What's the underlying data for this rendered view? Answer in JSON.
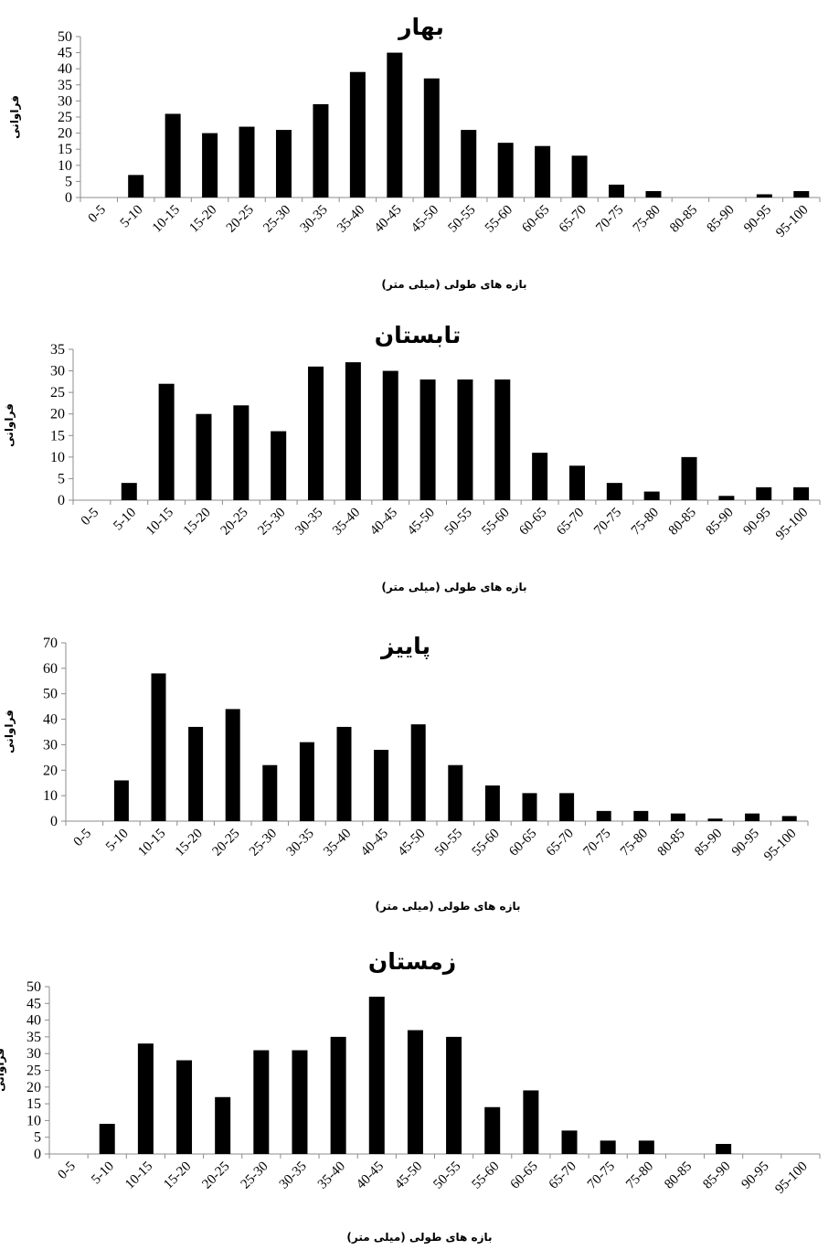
{
  "chart_data": [
    {
      "type": "bar",
      "title": "بهار",
      "xlabel": "بازه های طولی (میلی متر)",
      "ylabel": "فراوانی",
      "categories": [
        "0-5",
        "5-10",
        "10-15",
        "15-20",
        "20-25",
        "25-30",
        "30-35",
        "35-40",
        "40-45",
        "45-50",
        "50-55",
        "55-60",
        "60-65",
        "65-70",
        "70-75",
        "75-80",
        "80-85",
        "85-90",
        "90-95",
        "95-100"
      ],
      "values": [
        0,
        7,
        26,
        20,
        22,
        21,
        29,
        39,
        45,
        37,
        21,
        17,
        16,
        13,
        4,
        2,
        0,
        0,
        1,
        2
      ],
      "ylim": [
        0,
        50
      ],
      "yticks": [
        0,
        5,
        10,
        15,
        20,
        25,
        30,
        35,
        40,
        45,
        50
      ],
      "grid": false,
      "bar_color": "#000000"
    },
    {
      "type": "bar",
      "title": "تابستان",
      "xlabel": "بازه های طولی (میلی متر)",
      "ylabel": "فراوانی",
      "categories": [
        "0-5",
        "5-10",
        "10-15",
        "15-20",
        "20-25",
        "25-30",
        "30-35",
        "35-40",
        "40-45",
        "45-50",
        "50-55",
        "55-60",
        "60-65",
        "65-70",
        "70-75",
        "75-80",
        "80-85",
        "85-90",
        "90-95",
        "95-100"
      ],
      "values": [
        0,
        4,
        27,
        20,
        22,
        16,
        31,
        32,
        30,
        28,
        28,
        28,
        11,
        8,
        4,
        2,
        10,
        1,
        3,
        3
      ],
      "ylim": [
        0,
        35
      ],
      "yticks": [
        0,
        5,
        10,
        15,
        20,
        25,
        30,
        35
      ],
      "grid": false,
      "bar_color": "#000000"
    },
    {
      "type": "bar",
      "title": "پاییز",
      "xlabel": "بازه های طولی (میلی متر)",
      "ylabel": "فراوانی",
      "categories": [
        "0-5",
        "5-10",
        "10-15",
        "15-20",
        "20-25",
        "25-30",
        "30-35",
        "35-40",
        "40-45",
        "45-50",
        "50-55",
        "55-60",
        "60-65",
        "65-70",
        "70-75",
        "75-80",
        "80-85",
        "85-90",
        "90-95",
        "95-100"
      ],
      "values": [
        0,
        16,
        58,
        37,
        44,
        22,
        31,
        37,
        28,
        38,
        22,
        14,
        11,
        11,
        4,
        4,
        3,
        1,
        3,
        2
      ],
      "ylim": [
        0,
        70
      ],
      "yticks": [
        0,
        10,
        20,
        30,
        40,
        50,
        60,
        70
      ],
      "grid": false,
      "bar_color": "#000000"
    },
    {
      "type": "bar",
      "title": "زمستان",
      "xlabel": "بازه های طولی (میلی متر)",
      "ylabel": "فراوانی",
      "categories": [
        "0-5",
        "5-10",
        "10-15",
        "15-20",
        "20-25",
        "25-30",
        "30-35",
        "35-40",
        "40-45",
        "45-50",
        "50-55",
        "55-60",
        "60-65",
        "65-70",
        "70-75",
        "75-80",
        "80-85",
        "85-90",
        "90-95",
        "95-100"
      ],
      "values": [
        0,
        9,
        33,
        28,
        17,
        31,
        31,
        35,
        47,
        37,
        35,
        14,
        19,
        7,
        4,
        4,
        0,
        3,
        0,
        0
      ],
      "ylim": [
        0,
        50
      ],
      "yticks": [
        0,
        5,
        10,
        15,
        20,
        25,
        30,
        35,
        40,
        45,
        50
      ],
      "grid": false,
      "bar_color": "#000000"
    }
  ]
}
